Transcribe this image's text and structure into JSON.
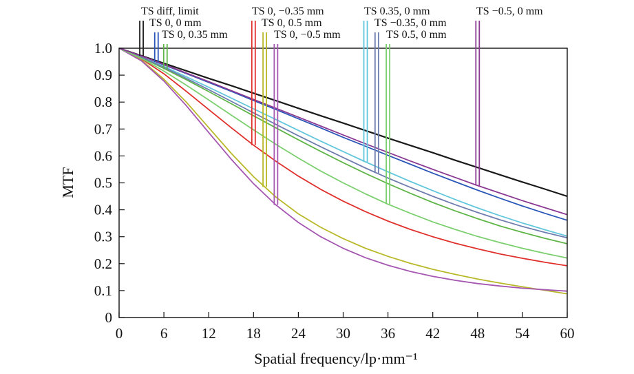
{
  "chart_data": {
    "type": "line",
    "title": "",
    "xlabel": "Spatial frequency/lp·mm⁻¹",
    "ylabel": "MTF",
    "xlim": [
      0,
      60
    ],
    "ylim": [
      0,
      1.0
    ],
    "x_ticks": [
      "0",
      "6",
      "12",
      "18",
      "24",
      "30",
      "36",
      "42",
      "48",
      "54",
      "60"
    ],
    "y_ticks": [
      "0",
      "0.1",
      "0.2",
      "0.3",
      "0.4",
      "0.5",
      "0.6",
      "0.7",
      "0.8",
      "0.9",
      "1.0"
    ],
    "x": [
      0,
      3,
      6,
      9,
      12,
      15,
      18,
      21,
      24,
      27,
      30,
      33,
      36,
      39,
      42,
      45,
      48,
      51,
      54,
      57,
      60
    ],
    "grid": false,
    "legend_placement": "top, callouts with leader lines",
    "series": [
      {
        "name": "TS diff, limit",
        "color": "#1a1a1a",
        "values": [
          1.0,
          0.972,
          0.944,
          0.916,
          0.888,
          0.861,
          0.833,
          0.805,
          0.777,
          0.749,
          0.722,
          0.694,
          0.666,
          0.639,
          0.612,
          0.584,
          0.557,
          0.53,
          0.503,
          0.477,
          0.45
        ]
      },
      {
        "name": "TS 0, 0 mm",
        "color": "#2a56b8",
        "values": [
          1.0,
          0.97,
          0.938,
          0.906,
          0.873,
          0.84,
          0.806,
          0.772,
          0.738,
          0.704,
          0.669,
          0.636,
          0.602,
          0.569,
          0.536,
          0.504,
          0.473,
          0.443,
          0.414,
          0.387,
          0.361
        ]
      },
      {
        "name": "TS 0, 0.35 mm",
        "color": "#5fb548",
        "values": [
          1.0,
          0.965,
          0.925,
          0.883,
          0.839,
          0.794,
          0.749,
          0.704,
          0.66,
          0.617,
          0.575,
          0.535,
          0.497,
          0.461,
          0.427,
          0.396,
          0.367,
          0.34,
          0.316,
          0.294,
          0.274
        ]
      },
      {
        "name": "TS 0, −0.35 mm",
        "color": "#e0302c",
        "values": [
          1.0,
          0.96,
          0.905,
          0.84,
          0.772,
          0.705,
          0.64,
          0.58,
          0.525,
          0.476,
          0.432,
          0.393,
          0.358,
          0.327,
          0.3,
          0.276,
          0.255,
          0.236,
          0.22,
          0.205,
          0.192
        ]
      },
      {
        "name": "TS 0, 0.5 mm",
        "color": "#b8b828",
        "values": [
          1.0,
          0.955,
          0.885,
          0.8,
          0.705,
          0.61,
          0.523,
          0.447,
          0.385,
          0.335,
          0.293,
          0.257,
          0.227,
          0.201,
          0.179,
          0.16,
          0.143,
          0.128,
          0.114,
          0.101,
          0.088
        ]
      },
      {
        "name": "TS 0, −0.5 mm",
        "color": "#a456b0",
        "values": [
          1.0,
          0.953,
          0.878,
          0.787,
          0.687,
          0.588,
          0.497,
          0.418,
          0.353,
          0.3,
          0.257,
          0.222,
          0.194,
          0.171,
          0.153,
          0.138,
          0.126,
          0.117,
          0.109,
          0.103,
          0.098
        ]
      },
      {
        "name": "TS 0.35, 0 mm",
        "color": "#62c6dc",
        "values": [
          1.0,
          0.968,
          0.932,
          0.894,
          0.855,
          0.815,
          0.775,
          0.735,
          0.695,
          0.655,
          0.616,
          0.578,
          0.541,
          0.505,
          0.471,
          0.438,
          0.407,
          0.378,
          0.351,
          0.326,
          0.302
        ]
      },
      {
        "name": "TS −0.35, 0 mm",
        "color": "#6f7dae",
        "values": [
          1.0,
          0.967,
          0.929,
          0.888,
          0.846,
          0.803,
          0.76,
          0.717,
          0.675,
          0.634,
          0.594,
          0.555,
          0.518,
          0.483,
          0.45,
          0.419,
          0.39,
          0.363,
          0.338,
          0.316,
          0.296
        ]
      },
      {
        "name": "TS 0.5, 0 mm",
        "color": "#7ccf6f",
        "values": [
          1.0,
          0.962,
          0.915,
          0.863,
          0.808,
          0.752,
          0.697,
          0.643,
          0.592,
          0.544,
          0.5,
          0.459,
          0.421,
          0.387,
          0.355,
          0.327,
          0.301,
          0.278,
          0.257,
          0.238,
          0.221
        ]
      },
      {
        "name": "TS −0.5, 0 mm",
        "color": "#8a3a92",
        "values": [
          1.0,
          0.971,
          0.94,
          0.908,
          0.876,
          0.843,
          0.81,
          0.777,
          0.744,
          0.711,
          0.678,
          0.645,
          0.613,
          0.581,
          0.55,
          0.52,
          0.49,
          0.462,
          0.434,
          0.408,
          0.382
        ]
      }
    ]
  }
}
